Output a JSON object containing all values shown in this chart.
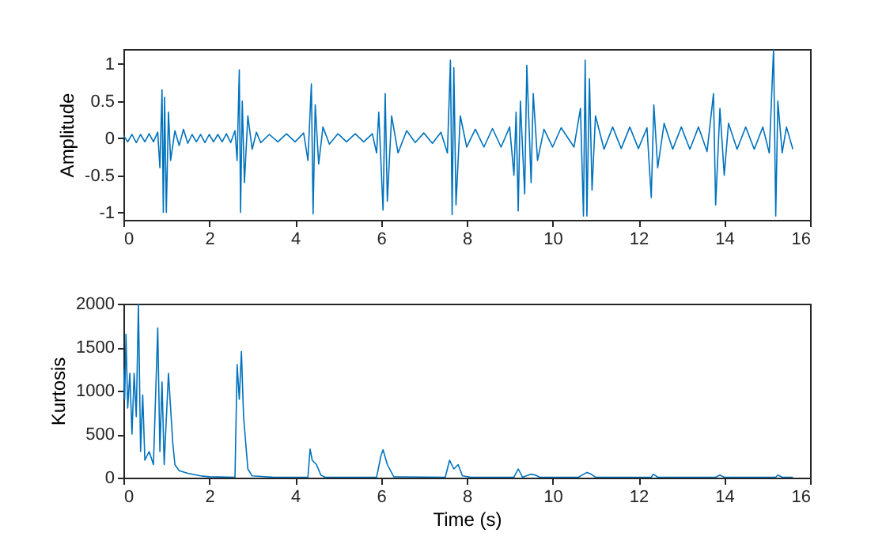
{
  "chart_data": [
    {
      "type": "line",
      "ylabel": "Amplitude",
      "color": "#0072bd",
      "xlim": [
        0,
        16
      ],
      "xticks": [
        0,
        2,
        4,
        6,
        8,
        10,
        12,
        14,
        16
      ],
      "ylim": [
        -1.1,
        1.2
      ],
      "yticks": [
        -1,
        -0.5,
        0,
        0.5,
        1
      ],
      "x": [
        0,
        0.1,
        0.2,
        0.3,
        0.4,
        0.5,
        0.6,
        0.7,
        0.8,
        0.85,
        0.9,
        0.93,
        0.96,
        1.0,
        1.05,
        1.1,
        1.2,
        1.3,
        1.4,
        1.5,
        1.6,
        1.7,
        1.8,
        1.9,
        2.0,
        2.1,
        2.2,
        2.3,
        2.4,
        2.5,
        2.6,
        2.65,
        2.7,
        2.73,
        2.77,
        2.82,
        2.9,
        3.0,
        3.1,
        3.2,
        3.4,
        3.6,
        3.8,
        4.0,
        4.2,
        4.3,
        4.38,
        4.42,
        4.47,
        4.55,
        4.65,
        4.8,
        5.0,
        5.2,
        5.4,
        5.6,
        5.8,
        5.9,
        5.95,
        6.05,
        6.1,
        6.15,
        6.25,
        6.4,
        6.6,
        6.8,
        7.0,
        7.2,
        7.4,
        7.55,
        7.62,
        7.66,
        7.7,
        7.75,
        7.85,
        8.0,
        8.2,
        8.4,
        8.6,
        8.8,
        9.0,
        9.1,
        9.15,
        9.2,
        9.25,
        9.35,
        9.4,
        9.5,
        9.55,
        9.65,
        9.8,
        10.0,
        10.2,
        10.5,
        10.65,
        10.72,
        10.76,
        10.8,
        10.86,
        10.92,
        11.0,
        11.2,
        11.4,
        11.6,
        11.8,
        12.0,
        12.2,
        12.3,
        12.36,
        12.45,
        12.6,
        12.8,
        13.0,
        13.2,
        13.4,
        13.6,
        13.75,
        13.8,
        13.9,
        14.0,
        14.1,
        14.3,
        14.5,
        14.7,
        14.9,
        15.05,
        15.15,
        15.2,
        15.25,
        15.35,
        15.45,
        15.6
      ],
      "values": [
        0.04,
        -0.05,
        0.05,
        -0.06,
        0.05,
        -0.05,
        0.06,
        -0.05,
        0.08,
        -0.4,
        0.65,
        -1.0,
        0.55,
        -1.0,
        0.35,
        -0.3,
        0.1,
        -0.1,
        0.12,
        -0.07,
        0.05,
        -0.05,
        0.05,
        -0.06,
        0.05,
        -0.05,
        0.05,
        -0.05,
        0.06,
        -0.06,
        0.1,
        -0.3,
        0.92,
        -1.0,
        0.5,
        -0.6,
        0.3,
        -0.15,
        0.08,
        -0.06,
        0.05,
        -0.05,
        0.06,
        -0.05,
        0.07,
        -0.3,
        0.73,
        -1.02,
        0.45,
        -0.35,
        0.15,
        -0.08,
        0.06,
        -0.05,
        0.06,
        -0.05,
        0.06,
        -0.2,
        0.35,
        -0.97,
        0.6,
        -0.85,
        0.3,
        -0.2,
        0.1,
        -0.06,
        0.07,
        -0.07,
        0.08,
        -0.2,
        1.05,
        -1.03,
        0.95,
        -0.9,
        0.3,
        -0.12,
        0.12,
        -0.12,
        0.13,
        -0.12,
        0.15,
        -0.5,
        0.35,
        -0.98,
        0.5,
        -0.75,
        0.98,
        -0.6,
        0.6,
        -0.3,
        0.12,
        -0.12,
        0.14,
        -0.12,
        0.4,
        -1.05,
        1.05,
        -1.05,
        0.8,
        -0.7,
        0.3,
        -0.15,
        0.15,
        -0.14,
        0.15,
        -0.14,
        0.14,
        -0.8,
        0.45,
        -0.4,
        0.2,
        -0.15,
        0.15,
        -0.15,
        0.15,
        -0.18,
        0.6,
        -0.9,
        0.4,
        -0.5,
        0.2,
        -0.15,
        0.15,
        -0.15,
        0.15,
        -0.2,
        1.2,
        -1.05,
        0.5,
        -0.2,
        0.15,
        -0.15
      ]
    },
    {
      "type": "line",
      "xlabel": "Time (s)",
      "ylabel": "Kurtosis",
      "color": "#0072bd",
      "xlim": [
        0,
        16
      ],
      "xticks": [
        0,
        2,
        4,
        6,
        8,
        10,
        12,
        14,
        16
      ],
      "ylim": [
        0,
        2000
      ],
      "yticks": [
        0,
        500,
        1000,
        1500,
        2000
      ],
      "x": [
        0,
        0.03,
        0.06,
        0.1,
        0.15,
        0.2,
        0.25,
        0.3,
        0.35,
        0.4,
        0.45,
        0.5,
        0.6,
        0.7,
        0.8,
        0.85,
        0.9,
        0.95,
        1.05,
        1.1,
        1.15,
        1.2,
        1.3,
        1.5,
        1.8,
        2.0,
        2.6,
        2.65,
        2.7,
        2.75,
        2.8,
        2.85,
        2.9,
        3.0,
        3.5,
        4.3,
        4.35,
        4.4,
        4.5,
        4.6,
        4.7,
        5.9,
        6.0,
        6.05,
        6.15,
        6.3,
        7.5,
        7.6,
        7.7,
        7.8,
        7.9,
        8.1,
        9.1,
        9.2,
        9.3,
        9.5,
        9.6,
        9.7,
        10.6,
        10.8,
        10.9,
        11.0,
        12.3,
        12.35,
        12.45,
        13.8,
        13.9,
        14.0,
        15.2,
        15.25,
        15.35,
        15.6
      ],
      "values": [
        1250,
        900,
        1650,
        800,
        1200,
        500,
        1200,
        700,
        2000,
        300,
        950,
        200,
        300,
        150,
        1720,
        300,
        1100,
        150,
        1200,
        800,
        400,
        150,
        80,
        50,
        20,
        10,
        5,
        1300,
        900,
        1450,
        700,
        400,
        100,
        20,
        5,
        5,
        330,
        200,
        150,
        30,
        5,
        5,
        250,
        320,
        150,
        10,
        5,
        200,
        100,
        150,
        20,
        5,
        5,
        100,
        5,
        40,
        30,
        5,
        5,
        60,
        40,
        5,
        5,
        40,
        5,
        5,
        30,
        5,
        5,
        30,
        5,
        5
      ]
    }
  ]
}
